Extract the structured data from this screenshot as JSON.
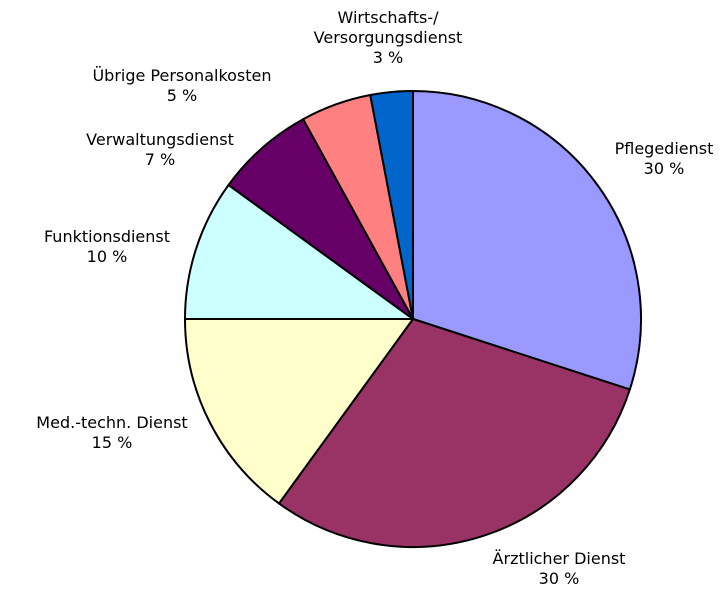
{
  "chart_data": {
    "type": "pie",
    "categories": [
      "Pflegedienst",
      "Ärztlicher Dienst",
      "Med.-techn. Dienst",
      "Funktionsdienst",
      "Verwaltungsdienst",
      "Übrige Personalkosten",
      "Wirtschafts-/\nVersorgungsdienst"
    ],
    "values": [
      30,
      30,
      15,
      10,
      7,
      5,
      3
    ],
    "value_labels": [
      "30 %",
      "30 %",
      "15 %",
      "10 %",
      "7 %",
      "5 %",
      "3 %"
    ],
    "colors": [
      "#9999ff",
      "#993366",
      "#ffffcc",
      "#ccffff",
      "#660066",
      "#ff8080",
      "#0066cc"
    ]
  }
}
